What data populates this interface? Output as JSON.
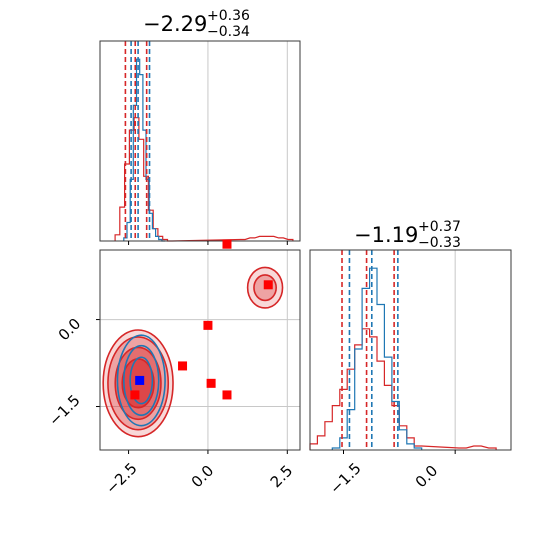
{
  "colors": {
    "red": "#d62728",
    "blue": "#1f77b4",
    "marker_red": "#ff0000",
    "marker_blue": "#0000ff",
    "grid": "#c8c8c8"
  },
  "chart_data": [
    {
      "panel": "marginal-1",
      "type": "histogram",
      "title": {
        "main": "−2.29",
        "plus": "+0.36",
        "minus": "−0.34"
      },
      "xlim": [
        -3.4,
        2.9
      ],
      "grid_x": [
        0.0,
        2.5
      ],
      "series": [
        {
          "name": "",
          "color": "#d62728",
          "x": [
            -2.85,
            -2.7,
            -2.55,
            -2.4,
            -2.25,
            -2.1,
            -1.95,
            -1.8,
            -1.65,
            -1.5,
            -1.35,
            -1.2,
            1.1,
            1.4,
            1.7,
            2.0,
            2.3,
            2.6
          ],
          "values": [
            4,
            22,
            50,
            72,
            80,
            66,
            42,
            20,
            8,
            3,
            1,
            0,
            1,
            2,
            3,
            3,
            2,
            1
          ]
        },
        {
          "name": "",
          "color": "#1f77b4",
          "x": [
            -2.6,
            -2.5,
            -2.4,
            -2.3,
            -2.2,
            -2.1,
            -2.0,
            -1.9,
            -1.8,
            -1.7,
            -1.6,
            -1.5,
            -1.4
          ],
          "values": [
            2,
            12,
            40,
            88,
            118,
            108,
            72,
            40,
            18,
            8,
            3,
            1,
            0
          ]
        }
      ],
      "quantiles": {
        "red": [
          -2.6,
          -2.29,
          -1.93
        ],
        "blue": [
          -2.42,
          -2.2,
          -1.84
        ]
      }
    },
    {
      "panel": "marginal-2",
      "type": "histogram",
      "title": {
        "main": "−1.19",
        "plus": "+0.37",
        "minus": "−0.33"
      },
      "xlim": [
        -1.95,
        0.75
      ],
      "grid_x": [
        0.0
      ],
      "ticks_x": [
        "−1.5",
        "0.0"
      ],
      "series": [
        {
          "name": "",
          "color": "#d62728",
          "x": [
            -1.9,
            -1.8,
            -1.7,
            -1.6,
            -1.5,
            -1.4,
            -1.3,
            -1.2,
            -1.1,
            -1.0,
            -0.9,
            -0.8,
            -0.7,
            -0.6,
            -0.5,
            0.1,
            0.3,
            0.5
          ],
          "values": [
            3,
            7,
            14,
            22,
            30,
            40,
            52,
            60,
            56,
            44,
            32,
            22,
            12,
            6,
            2,
            1,
            2,
            1
          ]
        },
        {
          "name": "",
          "color": "#1f77b4",
          "x": [
            -1.6,
            -1.5,
            -1.4,
            -1.3,
            -1.2,
            -1.1,
            -1.0,
            -0.9,
            -0.8,
            -0.7,
            -0.6,
            -0.5
          ],
          "values": [
            1,
            6,
            20,
            50,
            80,
            90,
            72,
            46,
            24,
            10,
            3,
            1
          ]
        }
      ],
      "quantiles": {
        "red": [
          -1.52,
          -1.19,
          -0.82
        ],
        "blue": [
          -1.42,
          -1.12,
          -0.77
        ]
      }
    },
    {
      "panel": "joint",
      "type": "scatter",
      "xlim": [
        -3.4,
        2.9
      ],
      "ylim": [
        -2.25,
        1.2
      ],
      "ticks_x": [
        "−2.5",
        "0.0",
        "2.5"
      ],
      "ticks_y": [
        "0.0",
        "−1.5"
      ],
      "grid_x": [
        0.0,
        2.5
      ],
      "grid_y": [
        0.0,
        -1.5
      ],
      "contours": [
        {
          "color": "#d62728",
          "center": [
            -2.2,
            -1.1
          ],
          "rx": [
            0.5,
            0.72,
            0.95,
            1.1
          ],
          "ry": [
            0.42,
            0.62,
            0.8,
            0.92
          ]
        },
        {
          "color": "#1f77b4",
          "center": [
            -2.1,
            -1.05
          ],
          "rx": [
            0.35,
            0.55,
            0.75
          ],
          "ry": [
            0.4,
            0.6,
            0.78
          ]
        },
        {
          "color": "#d62728",
          "center": [
            1.8,
            0.55
          ],
          "rx": [
            0.35,
            0.55
          ],
          "ry": [
            0.22,
            0.35
          ]
        }
      ],
      "markers": {
        "red": [
          [
            0.6,
            1.3
          ],
          [
            1.9,
            0.6
          ],
          [
            0.0,
            -0.1
          ],
          [
            -0.8,
            -0.8
          ],
          [
            0.1,
            -1.1
          ],
          [
            0.6,
            -1.3
          ],
          [
            -2.3,
            -1.3
          ]
        ],
        "blue": [
          [
            -2.15,
            -1.05
          ]
        ]
      }
    }
  ]
}
